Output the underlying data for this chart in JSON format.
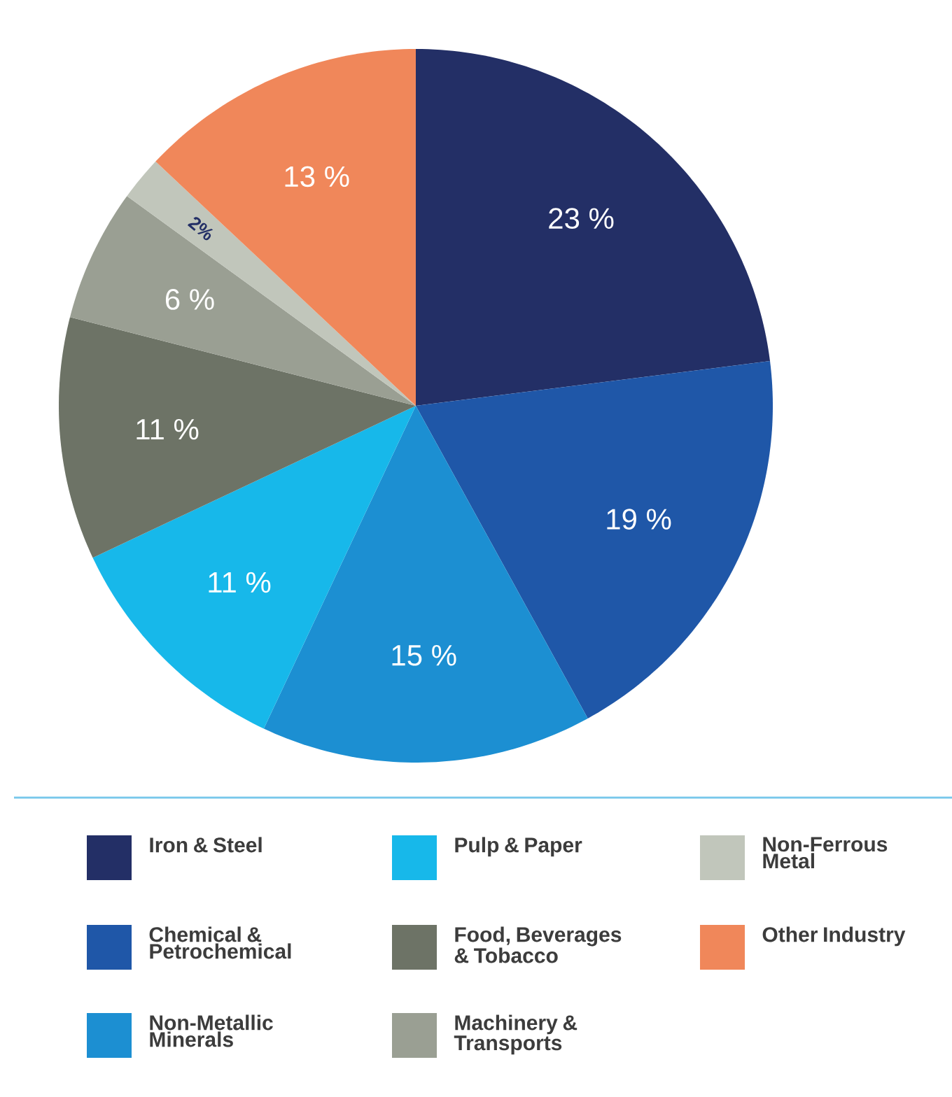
{
  "chart_data": {
    "type": "pie",
    "categories": [
      "Iron & Steel",
      "Chemical & Petrochemical",
      "Non-Metallic Minerals",
      "Pulp & Paper",
      "Food, Beverages & Tobacco",
      "Machinery & Transports",
      "Non-Ferrous Metal",
      "Other Industry"
    ],
    "values": [
      23,
      19,
      15,
      11,
      11,
      6,
      2,
      13
    ],
    "value_labels": [
      "23 %",
      "19 %",
      "15 %",
      "11 %",
      "11 %",
      "6 %",
      "2%",
      "13 %"
    ],
    "colors": [
      "#232f66",
      "#1f57a8",
      "#1c8fd2",
      "#17b8ea",
      "#6d7366",
      "#9a9f93",
      "#c1c6bb",
      "#f0875a"
    ],
    "legend": "bottom"
  }
}
